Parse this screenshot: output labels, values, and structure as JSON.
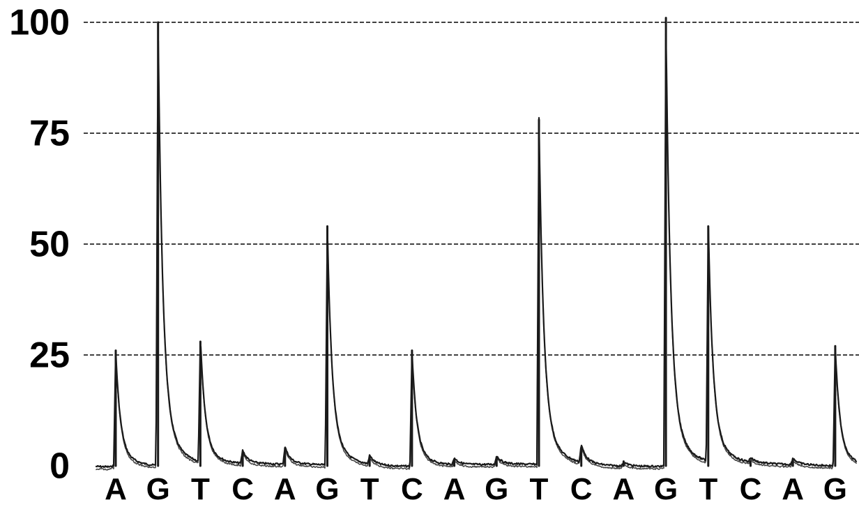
{
  "chart_data": {
    "type": "line",
    "title": "",
    "xlabel": "",
    "ylabel": "",
    "ylim": [
      0,
      100
    ],
    "yticks": [
      "0",
      "25",
      "50",
      "75",
      "100"
    ],
    "grid": true,
    "line_color": "#1a1a1a",
    "categories": [
      "A",
      "G",
      "T",
      "C",
      "A",
      "G",
      "T",
      "C",
      "A",
      "G",
      "T",
      "C",
      "A",
      "G",
      "T",
      "C",
      "A",
      "G"
    ],
    "series": [
      {
        "values": [
          26,
          100,
          28,
          3,
          4,
          54,
          2,
          26,
          1.5,
          2,
          78,
          4,
          1,
          101,
          54,
          1,
          1.5,
          27
        ]
      }
    ]
  }
}
